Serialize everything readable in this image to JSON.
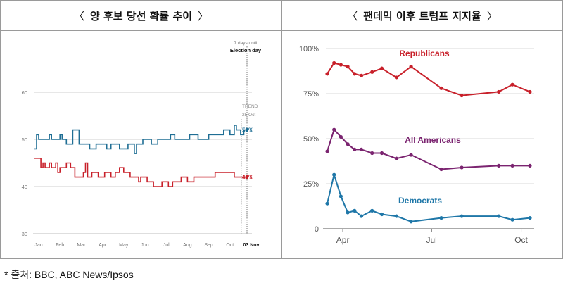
{
  "panels": {
    "left_title": "양 후보 당선 확률 추이",
    "right_title": "팬데믹 이후 트럼프 지지율",
    "bracket_open": "〈",
    "bracket_close": "〉"
  },
  "source_note": "*  출처: BBC, ABC News/Ipsos",
  "chart_data": [
    {
      "type": "line",
      "title": "양 후보 당선 확률 추이",
      "categories": [
        "Jan",
        "Feb",
        "Mar",
        "Apr",
        "May",
        "Jun",
        "Jul",
        "Aug",
        "Sep",
        "Oct",
        "03 Nov"
      ],
      "ylim": [
        30,
        60
      ],
      "yticks": [
        30,
        40,
        50,
        60
      ],
      "grid": true,
      "annotations": {
        "election_note": "7 days until",
        "election_label": "Election day",
        "trend_label": "TREND",
        "trend_date": "25 Oct"
      },
      "series": [
        {
          "color": "#1f6e94",
          "end_label": "52%",
          "points": [
            [
              0,
              48
            ],
            [
              0.1,
              48
            ],
            [
              0.1,
              51
            ],
            [
              0.2,
              51
            ],
            [
              0.2,
              50
            ],
            [
              0.7,
              50
            ],
            [
              0.7,
              51
            ],
            [
              0.8,
              51
            ],
            [
              0.8,
              50
            ],
            [
              1.2,
              50
            ],
            [
              1.2,
              51
            ],
            [
              1.3,
              51
            ],
            [
              1.3,
              50
            ],
            [
              1.5,
              50
            ],
            [
              1.5,
              49
            ],
            [
              1.8,
              49
            ],
            [
              1.8,
              52
            ],
            [
              2.1,
              52
            ],
            [
              2.1,
              49
            ],
            [
              2.6,
              49
            ],
            [
              2.6,
              48
            ],
            [
              2.9,
              48
            ],
            [
              2.9,
              49
            ],
            [
              3.4,
              49
            ],
            [
              3.4,
              48
            ],
            [
              3.6,
              48
            ],
            [
              3.6,
              49
            ],
            [
              4.0,
              49
            ],
            [
              4.0,
              48
            ],
            [
              4.4,
              48
            ],
            [
              4.4,
              49
            ],
            [
              4.7,
              49
            ],
            [
              4.7,
              47
            ],
            [
              4.8,
              47
            ],
            [
              4.8,
              49
            ],
            [
              5.1,
              49
            ],
            [
              5.1,
              50
            ],
            [
              5.5,
              50
            ],
            [
              5.5,
              49
            ],
            [
              5.8,
              49
            ],
            [
              5.8,
              50
            ],
            [
              6.4,
              50
            ],
            [
              6.4,
              51
            ],
            [
              6.6,
              51
            ],
            [
              6.6,
              50
            ],
            [
              7.3,
              50
            ],
            [
              7.3,
              51
            ],
            [
              7.7,
              51
            ],
            [
              7.7,
              50
            ],
            [
              8.2,
              50
            ],
            [
              8.2,
              51
            ],
            [
              8.9,
              51
            ],
            [
              8.9,
              52
            ],
            [
              9.2,
              52
            ],
            [
              9.2,
              51
            ],
            [
              9.4,
              51
            ],
            [
              9.4,
              53
            ],
            [
              9.5,
              53
            ],
            [
              9.5,
              52
            ],
            [
              9.7,
              52
            ],
            [
              9.7,
              51
            ],
            [
              9.85,
              51
            ],
            [
              9.85,
              52
            ],
            [
              10.0,
              52
            ]
          ]
        },
        {
          "color": "#c8202a",
          "end_label": "42%",
          "points": [
            [
              0,
              46
            ],
            [
              0.3,
              46
            ],
            [
              0.3,
              44
            ],
            [
              0.4,
              44
            ],
            [
              0.4,
              45
            ],
            [
              0.5,
              45
            ],
            [
              0.5,
              44
            ],
            [
              0.7,
              44
            ],
            [
              0.7,
              45
            ],
            [
              0.8,
              45
            ],
            [
              0.8,
              44
            ],
            [
              1.0,
              44
            ],
            [
              1.0,
              45
            ],
            [
              1.1,
              45
            ],
            [
              1.1,
              43
            ],
            [
              1.2,
              43
            ],
            [
              1.2,
              44
            ],
            [
              1.5,
              44
            ],
            [
              1.5,
              45
            ],
            [
              1.7,
              45
            ],
            [
              1.7,
              44
            ],
            [
              1.9,
              44
            ],
            [
              1.9,
              42
            ],
            [
              2.3,
              42
            ],
            [
              2.3,
              43
            ],
            [
              2.4,
              43
            ],
            [
              2.4,
              45
            ],
            [
              2.5,
              45
            ],
            [
              2.5,
              42
            ],
            [
              2.7,
              42
            ],
            [
              2.7,
              43
            ],
            [
              3.0,
              43
            ],
            [
              3.0,
              42
            ],
            [
              3.3,
              42
            ],
            [
              3.3,
              43
            ],
            [
              3.6,
              43
            ],
            [
              3.6,
              42
            ],
            [
              3.8,
              42
            ],
            [
              3.8,
              43
            ],
            [
              4.0,
              43
            ],
            [
              4.0,
              44
            ],
            [
              4.2,
              44
            ],
            [
              4.2,
              43
            ],
            [
              4.5,
              43
            ],
            [
              4.5,
              42
            ],
            [
              4.9,
              42
            ],
            [
              4.9,
              41
            ],
            [
              5.0,
              41
            ],
            [
              5.0,
              42
            ],
            [
              5.3,
              42
            ],
            [
              5.3,
              41
            ],
            [
              5.6,
              41
            ],
            [
              5.6,
              40
            ],
            [
              6.0,
              40
            ],
            [
              6.0,
              41
            ],
            [
              6.3,
              41
            ],
            [
              6.3,
              40
            ],
            [
              6.5,
              40
            ],
            [
              6.5,
              41
            ],
            [
              6.9,
              41
            ],
            [
              6.9,
              42
            ],
            [
              7.2,
              42
            ],
            [
              7.2,
              41
            ],
            [
              7.5,
              41
            ],
            [
              7.5,
              42
            ],
            [
              8.5,
              42
            ],
            [
              8.5,
              43
            ],
            [
              9.4,
              43
            ],
            [
              9.4,
              42
            ],
            [
              10.0,
              42
            ]
          ]
        }
      ]
    },
    {
      "type": "line",
      "title": "팬데믹 이후 트럼프 지지율",
      "x_ticks": [
        "Apr",
        "Jul",
        "Oct"
      ],
      "ylim": [
        0,
        100
      ],
      "yticks": [
        "0",
        "25%",
        "50%",
        "75%",
        "100%"
      ],
      "grid": true,
      "series": [
        {
          "name": "Republicans",
          "color": "#c8202a",
          "x": [
            "2020-03-16",
            "2020-03-23",
            "2020-03-30",
            "2020-04-06",
            "2020-04-13",
            "2020-04-20",
            "2020-05-01",
            "2020-05-11",
            "2020-05-26",
            "2020-06-10",
            "2020-07-11",
            "2020-08-01",
            "2020-09-08",
            "2020-09-22",
            "2020-10-10"
          ],
          "values": [
            86,
            92,
            91,
            90,
            86,
            85,
            87,
            89,
            84,
            90,
            78,
            74,
            76,
            80,
            76
          ]
        },
        {
          "name": "All Americans",
          "color": "#7b2470",
          "x": [
            "2020-03-16",
            "2020-03-23",
            "2020-03-30",
            "2020-04-06",
            "2020-04-13",
            "2020-04-20",
            "2020-05-01",
            "2020-05-11",
            "2020-05-26",
            "2020-06-10",
            "2020-07-11",
            "2020-08-01",
            "2020-09-08",
            "2020-09-22",
            "2020-10-10"
          ],
          "values": [
            43,
            55,
            51,
            47,
            44,
            44,
            42,
            42,
            39,
            41,
            33,
            34,
            35,
            35,
            35
          ]
        },
        {
          "name": "Democrats",
          "color": "#1f77a8",
          "x": [
            "2020-03-16",
            "2020-03-23",
            "2020-03-30",
            "2020-04-06",
            "2020-04-13",
            "2020-04-20",
            "2020-05-01",
            "2020-05-11",
            "2020-05-26",
            "2020-06-10",
            "2020-07-11",
            "2020-08-01",
            "2020-09-08",
            "2020-09-22",
            "2020-10-10"
          ],
          "values": [
            14,
            30,
            18,
            9,
            10,
            7,
            10,
            8,
            7,
            4,
            6,
            7,
            7,
            5,
            6
          ]
        }
      ]
    }
  ]
}
